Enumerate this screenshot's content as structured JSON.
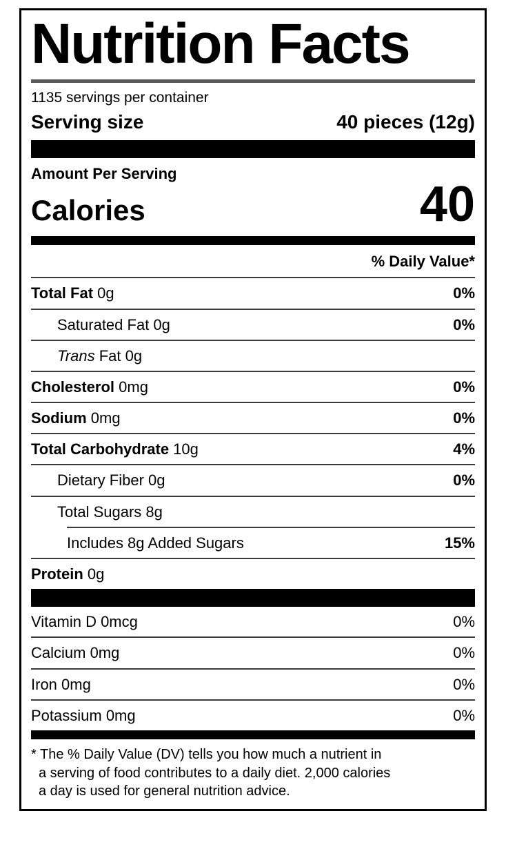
{
  "label": {
    "title": "Nutrition Facts",
    "servings_per_container": "1135 servings per container",
    "serving_size_label": "Serving size",
    "serving_size_value": "40 pieces (12g)",
    "amount_per_serving": "Amount Per Serving",
    "calories_label": "Calories",
    "calories_value": "40",
    "daily_value_header": "% Daily Value*",
    "rows": [
      {
        "bold": "Total Fat",
        "rest": " 0g",
        "dv": "0%"
      },
      {
        "bold": "",
        "rest": "Saturated Fat 0g",
        "dv": "0%"
      },
      {
        "bold": "",
        "italic": "Trans",
        "rest": " Fat 0g",
        "dv": ""
      },
      {
        "bold": "Cholesterol",
        "rest": " 0mg",
        "dv": "0%"
      },
      {
        "bold": "Sodium",
        "rest": " 0mg",
        "dv": "0%"
      },
      {
        "bold": "Total Carbohydrate",
        "rest": " 10g",
        "dv": "4%"
      },
      {
        "bold": "",
        "rest": "Dietary Fiber 0g",
        "dv": "0%"
      },
      {
        "bold": "",
        "rest": "Total Sugars 8g",
        "dv": ""
      },
      {
        "bold": "",
        "rest": "Includes 8g Added Sugars",
        "dv": "15%"
      },
      {
        "bold": "Protein",
        "rest": " 0g",
        "dv": ""
      }
    ],
    "vitamins": [
      {
        "name": "Vitamin D 0mcg",
        "dv": "0%"
      },
      {
        "name": "Calcium 0mg",
        "dv": "0%"
      },
      {
        "name": "Iron 0mg",
        "dv": "0%"
      },
      {
        "name": "Potassium 0mg",
        "dv": "0%"
      }
    ],
    "footnote_lines": [
      "* The % Daily Value (DV) tells you how much a nutrient in",
      "a serving of food contributes to a daily diet. 2,000 calories",
      "a day is used for general nutrition advice."
    ]
  },
  "colors": {
    "background": "#ffffff",
    "text": "#000000",
    "bar": "#000000",
    "row_divider": "#3a3a3a",
    "title_divider": "#595959",
    "border": "#000000"
  }
}
